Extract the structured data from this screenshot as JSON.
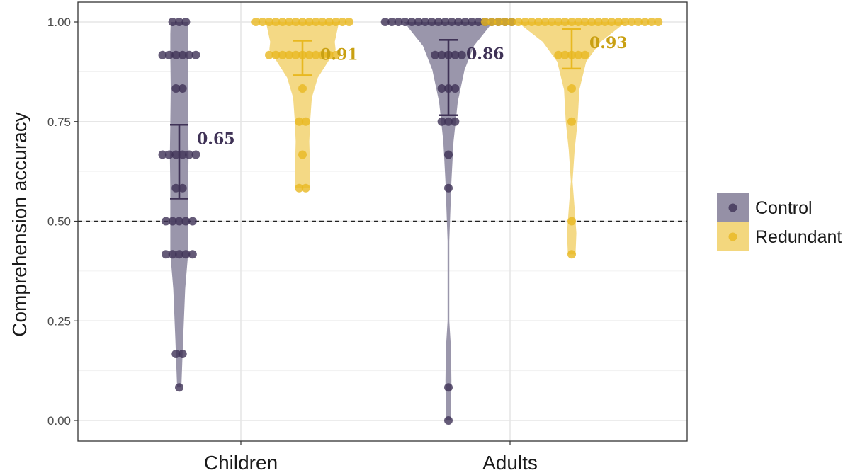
{
  "chart_data": {
    "type": "violin-dotplot",
    "title": "",
    "xlabel": "",
    "ylabel": "Comprehension accuracy",
    "ylim": [
      -0.05,
      1.04
    ],
    "yticks": [
      "0.00",
      "0.25",
      "0.50",
      "0.75",
      "1.00"
    ],
    "ytick_values": [
      0,
      0.25,
      0.5,
      0.75,
      1.0
    ],
    "reference_line": 0.5,
    "categories": [
      "Children",
      "Adults"
    ],
    "legend": {
      "position": "right"
    },
    "series": [
      {
        "name": "Control",
        "color": "#3f3256",
        "violin_color": "#9590a6",
        "groups": [
          {
            "category": "Children",
            "mean": 0.65,
            "mean_label": "0.65",
            "ci": [
              0.557,
              0.742
            ],
            "points": [
              {
                "y": 1.0,
                "n": 3
              },
              {
                "y": 0.917,
                "n": 6
              },
              {
                "y": 0.833,
                "n": 2
              },
              {
                "y": 0.667,
                "n": 6
              },
              {
                "y": 0.583,
                "n": 2
              },
              {
                "y": 0.5,
                "n": 5
              },
              {
                "y": 0.417,
                "n": 5
              },
              {
                "y": 0.167,
                "n": 2
              },
              {
                "y": 0.083,
                "n": 1
              }
            ],
            "density": [
              {
                "y": 0.083,
                "w": 0.25
              },
              {
                "y": 0.2,
                "w": 0.45
              },
              {
                "y": 0.33,
                "w": 0.7
              },
              {
                "y": 0.42,
                "w": 1.05
              },
              {
                "y": 0.5,
                "w": 1.05
              },
              {
                "y": 0.58,
                "w": 1.05
              },
              {
                "y": 0.667,
                "w": 1.1
              },
              {
                "y": 0.75,
                "w": 1.05
              },
              {
                "y": 0.833,
                "w": 1.0
              },
              {
                "y": 0.917,
                "w": 1.05
              },
              {
                "y": 0.97,
                "w": 1.05
              },
              {
                "y": 1.0,
                "w": 1.0
              }
            ]
          },
          {
            "category": "Adults",
            "mean": 0.86,
            "mean_label": "0.86",
            "ci": [
              0.766,
              0.955
            ],
            "points": [
              {
                "y": 1.0,
                "n": 20
              },
              {
                "y": 0.917,
                "n": 5
              },
              {
                "y": 0.833,
                "n": 3
              },
              {
                "y": 0.75,
                "n": 3
              },
              {
                "y": 0.667,
                "n": 1
              },
              {
                "y": 0.583,
                "n": 1
              },
              {
                "y": 0.083,
                "n": 1
              },
              {
                "y": 0.0,
                "n": 1
              }
            ],
            "density": [
              {
                "y": 0.0,
                "w": 0.3
              },
              {
                "y": 0.1,
                "w": 0.35
              },
              {
                "y": 0.18,
                "w": 0.3
              },
              {
                "y": 0.25,
                "w": 0.1
              },
              {
                "y": 0.45,
                "w": 0.1
              },
              {
                "y": 0.6,
                "w": 0.35
              },
              {
                "y": 0.7,
                "w": 0.6
              },
              {
                "y": 0.8,
                "w": 1.1
              },
              {
                "y": 0.88,
                "w": 1.9
              },
              {
                "y": 0.94,
                "w": 3.0
              },
              {
                "y": 0.98,
                "w": 4.5
              },
              {
                "y": 1.0,
                "w": 5.2
              }
            ]
          }
        ]
      },
      {
        "name": "Redundant",
        "color": "#e8b820",
        "violin_color": "#f3d77e",
        "groups": [
          {
            "category": "Children",
            "mean": 0.91,
            "mean_label": "0.91",
            "ci": [
              0.866,
              0.953
            ],
            "points": [
              {
                "y": 1.0,
                "n": 15
              },
              {
                "y": 0.917,
                "n": 11
              },
              {
                "y": 0.833,
                "n": 1
              },
              {
                "y": 0.75,
                "n": 2
              },
              {
                "y": 0.667,
                "n": 1
              },
              {
                "y": 0.583,
                "n": 2
              }
            ],
            "density": [
              {
                "y": 0.583,
                "w": 0.9
              },
              {
                "y": 0.62,
                "w": 0.9
              },
              {
                "y": 0.7,
                "w": 0.8
              },
              {
                "y": 0.75,
                "w": 0.9
              },
              {
                "y": 0.81,
                "w": 1.1
              },
              {
                "y": 0.86,
                "w": 1.8
              },
              {
                "y": 0.9,
                "w": 3.0
              },
              {
                "y": 0.93,
                "w": 3.9
              },
              {
                "y": 0.95,
                "w": 3.8
              },
              {
                "y": 0.97,
                "w": 4.0
              },
              {
                "y": 1.0,
                "w": 4.3
              }
            ]
          },
          {
            "category": "Adults",
            "mean": 0.93,
            "mean_label": "0.93",
            "ci": [
              0.883,
              0.982
            ],
            "points": [
              {
                "y": 1.0,
                "n": 27
              },
              {
                "y": 0.917,
                "n": 5
              },
              {
                "y": 0.833,
                "n": 1
              },
              {
                "y": 0.75,
                "n": 1
              },
              {
                "y": 0.5,
                "n": 1
              },
              {
                "y": 0.417,
                "n": 1
              }
            ],
            "density": [
              {
                "y": 0.417,
                "w": 0.45
              },
              {
                "y": 0.47,
                "w": 0.55
              },
              {
                "y": 0.53,
                "w": 0.35
              },
              {
                "y": 0.6,
                "w": 0.1
              },
              {
                "y": 0.68,
                "w": 0.35
              },
              {
                "y": 0.75,
                "w": 0.7
              },
              {
                "y": 0.83,
                "w": 0.9
              },
              {
                "y": 0.9,
                "w": 1.7
              },
              {
                "y": 0.95,
                "w": 3.4
              },
              {
                "y": 0.98,
                "w": 5.2
              },
              {
                "y": 1.0,
                "w": 6.4
              }
            ]
          }
        ]
      }
    ]
  }
}
